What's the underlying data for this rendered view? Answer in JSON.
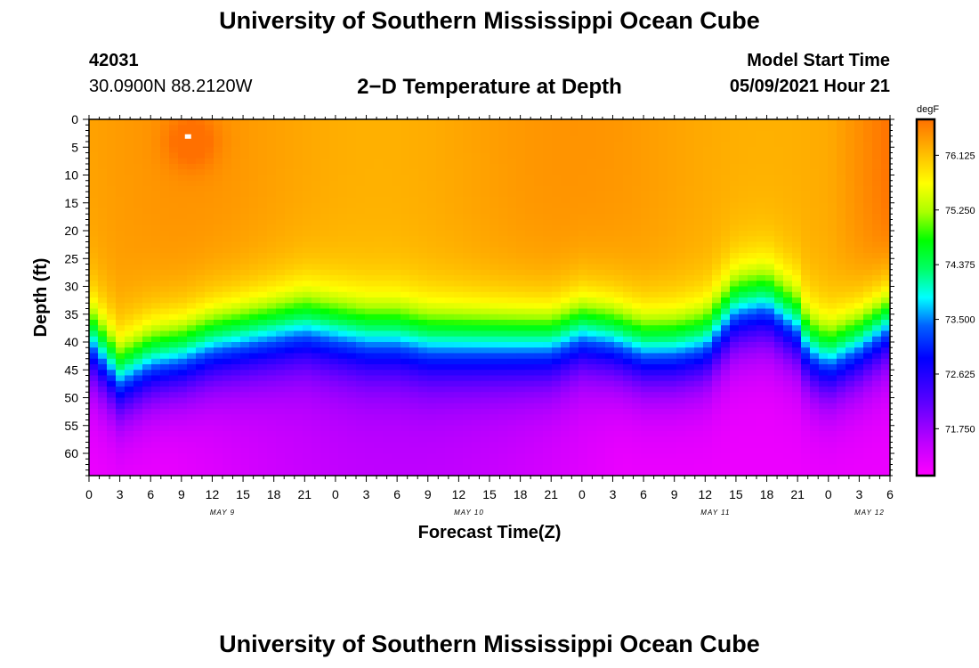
{
  "header": {
    "title": "University of Southern Mississippi Ocean Cube",
    "station_id": "42031",
    "coordinates": "30.0900N  88.2120W",
    "chart_title": "2−D Temperature at Depth",
    "model_label": "Model Start Time",
    "model_time": "05/09/2021 Hour 21"
  },
  "footer": {
    "title": "University of Southern Mississippi Ocean Cube"
  },
  "chart_data": {
    "type": "heatmap",
    "title": "2−D Temperature at Depth",
    "xlabel": "Forecast Time(Z)",
    "ylabel": "Depth (ft)",
    "x_tick_labels": [
      "0",
      "3",
      "6",
      "9",
      "12",
      "15",
      "18",
      "21",
      "0",
      "3",
      "6",
      "9",
      "12",
      "15",
      "18",
      "21",
      "0",
      "3",
      "6",
      "9",
      "12",
      "15",
      "18",
      "21",
      "0",
      "3",
      "6"
    ],
    "x_date_labels": [
      {
        "label": "MAY 9",
        "hour_index": 13
      },
      {
        "label": "MAY 10",
        "hour_index": 37
      },
      {
        "label": "MAY 11",
        "hour_index": 61
      },
      {
        "label": "MAY 12",
        "hour_index": 76
      }
    ],
    "x_range_hours": [
      0,
      78
    ],
    "y_tick_labels": [
      "0",
      "5",
      "10",
      "15",
      "20",
      "25",
      "30",
      "35",
      "40",
      "45",
      "50",
      "55",
      "60"
    ],
    "y_tick_values": [
      0,
      5,
      10,
      15,
      20,
      25,
      30,
      35,
      40,
      45,
      50,
      55,
      60
    ],
    "y_range_ft": [
      0,
      64
    ],
    "colorbar": {
      "unit": "degF",
      "range": [
        71.0,
        76.7
      ],
      "labels": [
        "76.125",
        "75.250",
        "74.375",
        "73.500",
        "72.625",
        "71.750"
      ],
      "label_values": [
        76.125,
        75.25,
        74.375,
        73.5,
        72.625,
        71.75
      ],
      "colors": [
        "#ff00ff",
        "#aa00ff",
        "#5000ff",
        "#0000ff",
        "#0050ff",
        "#00ffff",
        "#00ff66",
        "#00ff00",
        "#aaff00",
        "#ffff00",
        "#ffcc00",
        "#ffa000",
        "#ff7000"
      ]
    },
    "thermocline_depth_ft_by_hour": [
      [
        0,
        38
      ],
      [
        3,
        45
      ],
      [
        6,
        42
      ],
      [
        9,
        41
      ],
      [
        12,
        39
      ],
      [
        15,
        38
      ],
      [
        18,
        37
      ],
      [
        21,
        36
      ],
      [
        24,
        37
      ],
      [
        27,
        38
      ],
      [
        30,
        38
      ],
      [
        33,
        39
      ],
      [
        36,
        39
      ],
      [
        39,
        39
      ],
      [
        42,
        39
      ],
      [
        45,
        39
      ],
      [
        48,
        37
      ],
      [
        51,
        38
      ],
      [
        54,
        40
      ],
      [
        57,
        40
      ],
      [
        60,
        39
      ],
      [
        63,
        33
      ],
      [
        66,
        32
      ],
      [
        69,
        36
      ],
      [
        70,
        40
      ],
      [
        72,
        42
      ],
      [
        75,
        39
      ],
      [
        78,
        35
      ]
    ],
    "surface_temperature_note": "Warm core ~76.6 degF near hour 9-12 at 0-10 ft; surface ~76.1-76.4 degF; deep water ~71.1 degF"
  }
}
